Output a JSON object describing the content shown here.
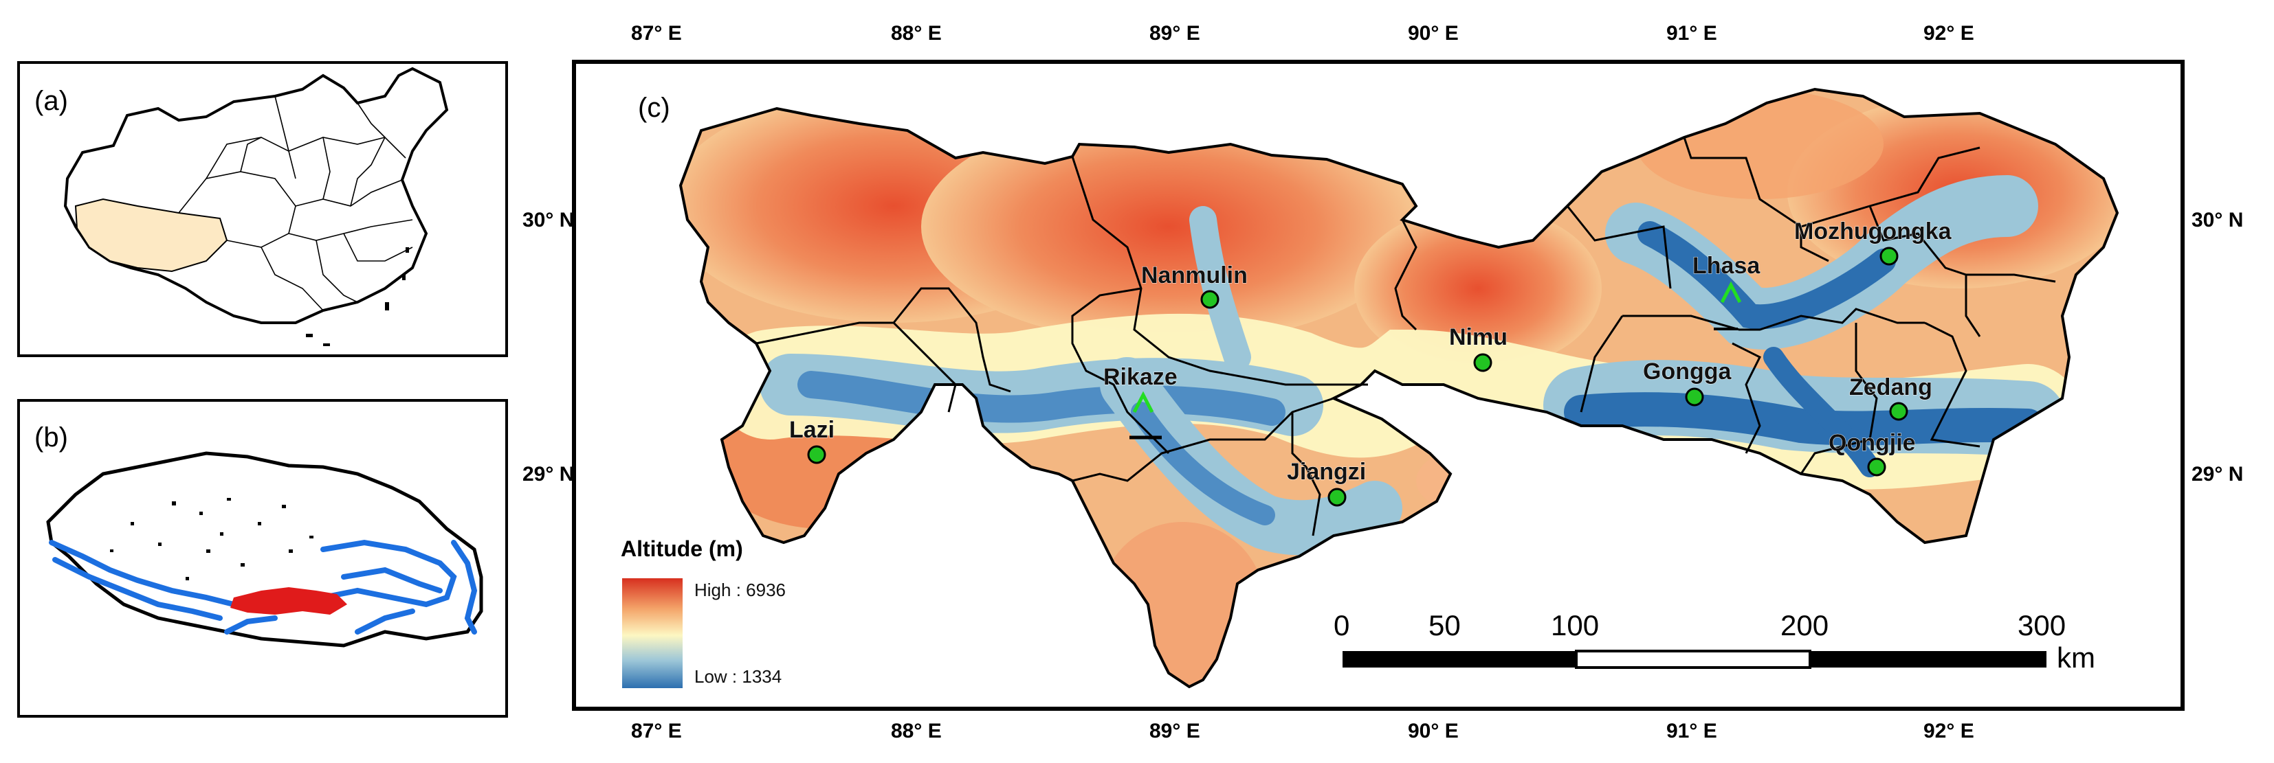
{
  "panels": {
    "a": "(a)",
    "b": "(b)",
    "c": "(c)"
  },
  "longitude_labels": [
    "87° E",
    "88° E",
    "89° E",
    "90° E",
    "91° E",
    "92° E"
  ],
  "latitude_labels": [
    "30° N",
    "29° N"
  ],
  "places": [
    {
      "name": "Nanmulin",
      "station": true
    },
    {
      "name": "Lazi",
      "station": true
    },
    {
      "name": "Rikaze",
      "station": false
    },
    {
      "name": "Jiangzi",
      "station": true
    },
    {
      "name": "Nimu",
      "station": true
    },
    {
      "name": "Lhasa",
      "station": false
    },
    {
      "name": "Mozhugongka",
      "station": true
    },
    {
      "name": "Gongga",
      "station": true
    },
    {
      "name": "Zedang",
      "station": true
    },
    {
      "name": "Qongjie",
      "station": true
    }
  ],
  "legend": {
    "title": "Altitude (m)",
    "high": "High : 6936",
    "low": "Low : 1334",
    "colors": [
      "#d7301f",
      "#f4a56a",
      "#fdf7c2",
      "#9cc6d8",
      "#2c6fb0"
    ]
  },
  "scale_bar": {
    "ticks": [
      "0",
      "50",
      "100",
      "200",
      "300"
    ],
    "unit": "km"
  },
  "colors": {
    "station": "#22c422",
    "city_marker": "#22dd22",
    "river": "#1c6fe0",
    "study_area": "#e01b1b",
    "tibet_fill": "#fde9c4"
  }
}
